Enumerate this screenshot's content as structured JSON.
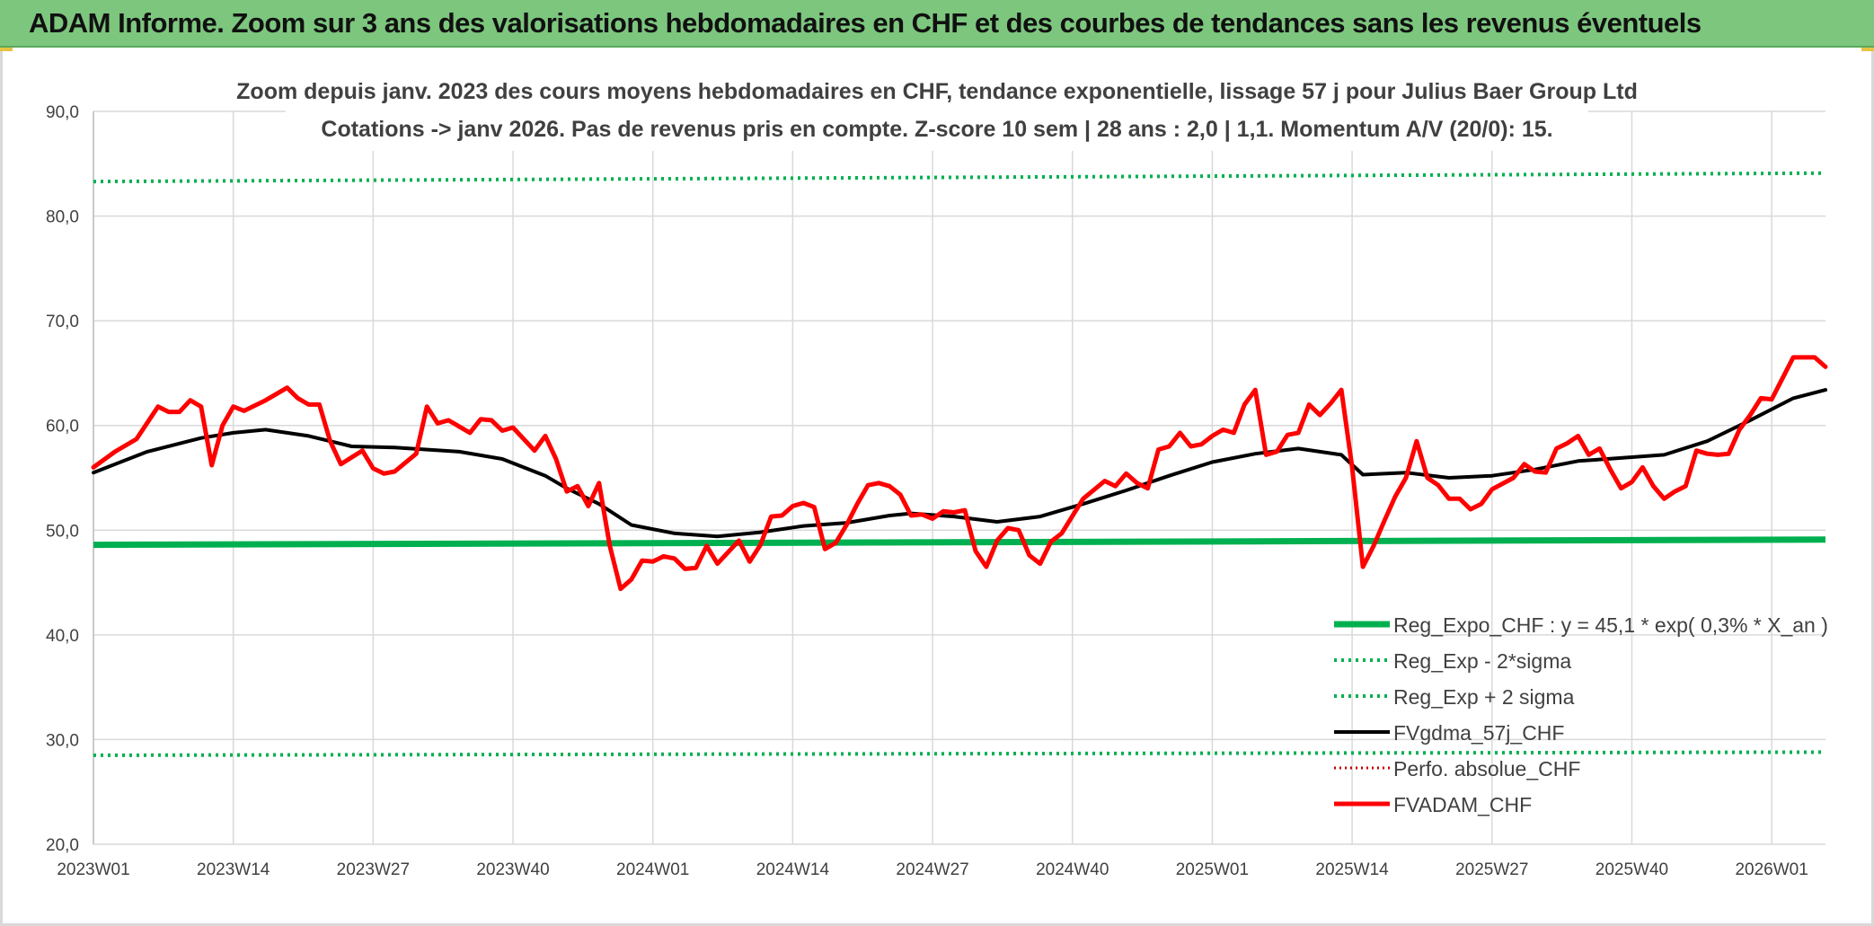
{
  "banner": {
    "title": "ADAM Informe. Zoom sur 3 ans des valorisations hebdomadaires en CHF et des courbes de tendances sans les revenus éventuels"
  },
  "colors": {
    "banner_bg": "#7dc67e",
    "reg_expo": "#00b050",
    "sigma_bands": "#00b050",
    "fvgdma": "#000000",
    "perfo": "#c00000",
    "fvadam": "#ff0000",
    "grid": "#d9d9d9",
    "text": "#404040"
  },
  "chart_data": {
    "type": "line",
    "title_line1": "Zoom depuis janv. 2023 des cours moyens hebdomadaires en CHF, tendance exponentielle, lissage 57 j pour Julius Baer Group Ltd",
    "title_line2": "Cotations -> janv 2026. Pas de revenus pris en compte. Z-score 10 sem | 28 ans : 2,0 | 1,1. Momentum A/V (20/0): 15.",
    "xlabel": "",
    "ylabel": "",
    "ylim": [
      20,
      90
    ],
    "y_ticks": [
      "20,0",
      "30,0",
      "40,0",
      "50,0",
      "60,0",
      "70,0",
      "80,0",
      "90,0"
    ],
    "x_tick_labels": [
      "2023W01",
      "2023W14",
      "2023W27",
      "2023W40",
      "2024W01",
      "2024W14",
      "2024W27",
      "2024W40",
      "2025W01",
      "2025W14",
      "2025W27",
      "2025W40",
      "2026W01"
    ],
    "x_tick_index": [
      0,
      13,
      26,
      39,
      52,
      65,
      78,
      91,
      104,
      117,
      130,
      143,
      156
    ],
    "x_count": 162,
    "grid": true,
    "legend_position": "bottom-right",
    "legend": [
      "Reg_Expo_CHF : y = 45,1 * exp( 0,3% *  X_an )",
      "Reg_Exp - 2*sigma",
      "Reg_Exp + 2 sigma",
      "FVgdma_57j_CHF",
      "Perfo. absolue_CHF",
      "FVADAM_CHF"
    ],
    "series": [
      {
        "name": "Reg_Expo_CHF : y = 45,1 * exp( 0,3% *  X_an )",
        "start": 48.6,
        "end": 49.1
      },
      {
        "name": "Reg_Exp - 2*sigma",
        "start": 28.5,
        "end": 28.8
      },
      {
        "name": "Reg_Exp + 2 sigma",
        "start": 83.3,
        "end": 84.1
      },
      {
        "name": "FVgdma_57j_CHF",
        "points": [
          [
            0,
            55.5
          ],
          [
            5,
            57.5
          ],
          [
            10,
            58.8
          ],
          [
            13,
            59.3
          ],
          [
            16,
            59.6
          ],
          [
            20,
            59.0
          ],
          [
            24,
            58.0
          ],
          [
            28,
            57.9
          ],
          [
            34,
            57.5
          ],
          [
            38,
            56.8
          ],
          [
            42,
            55.2
          ],
          [
            44,
            54.0
          ],
          [
            47,
            52.5
          ],
          [
            50,
            50.5
          ],
          [
            54,
            49.7
          ],
          [
            58,
            49.4
          ],
          [
            62,
            49.8
          ],
          [
            66,
            50.4
          ],
          [
            70,
            50.7
          ],
          [
            74,
            51.4
          ],
          [
            76,
            51.6
          ],
          [
            80,
            51.3
          ],
          [
            84,
            50.8
          ],
          [
            88,
            51.3
          ],
          [
            92,
            52.5
          ],
          [
            96,
            53.8
          ],
          [
            100,
            55.2
          ],
          [
            104,
            56.5
          ],
          [
            108,
            57.3
          ],
          [
            112,
            57.8
          ],
          [
            116,
            57.2
          ],
          [
            118,
            55.3
          ],
          [
            122,
            55.5
          ],
          [
            126,
            55.0
          ],
          [
            130,
            55.2
          ],
          [
            134,
            55.8
          ],
          [
            138,
            56.6
          ],
          [
            142,
            56.9
          ],
          [
            146,
            57.2
          ],
          [
            150,
            58.5
          ],
          [
            154,
            60.5
          ],
          [
            158,
            62.6
          ],
          [
            161,
            63.4
          ]
        ]
      },
      {
        "name": "Perfo. absolue_CHF",
        "points": []
      },
      {
        "name": "FVADAM_CHF",
        "points": [
          [
            0,
            56.0
          ],
          [
            2,
            57.5
          ],
          [
            4,
            58.7
          ],
          [
            6,
            61.8
          ],
          [
            7,
            61.3
          ],
          [
            8,
            61.3
          ],
          [
            9,
            62.4
          ],
          [
            10,
            61.8
          ],
          [
            11,
            56.2
          ],
          [
            12,
            60.0
          ],
          [
            13,
            61.8
          ],
          [
            14,
            61.4
          ],
          [
            16,
            62.4
          ],
          [
            18,
            63.6
          ],
          [
            19,
            62.6
          ],
          [
            20,
            62.0
          ],
          [
            21,
            62.0
          ],
          [
            22,
            58.5
          ],
          [
            23,
            56.3
          ],
          [
            25,
            57.6
          ],
          [
            26,
            55.9
          ],
          [
            27,
            55.4
          ],
          [
            28,
            55.6
          ],
          [
            30,
            57.3
          ],
          [
            31,
            61.8
          ],
          [
            32,
            60.2
          ],
          [
            33,
            60.5
          ],
          [
            35,
            59.3
          ],
          [
            36,
            60.6
          ],
          [
            37,
            60.5
          ],
          [
            38,
            59.5
          ],
          [
            39,
            59.8
          ],
          [
            41,
            57.6
          ],
          [
            42,
            59.0
          ],
          [
            43,
            56.8
          ],
          [
            44,
            53.7
          ],
          [
            45,
            54.2
          ],
          [
            46,
            52.3
          ],
          [
            47,
            54.5
          ],
          [
            48,
            48.5
          ],
          [
            49,
            44.4
          ],
          [
            50,
            45.3
          ],
          [
            51,
            47.1
          ],
          [
            52,
            47.0
          ],
          [
            53,
            47.5
          ],
          [
            54,
            47.3
          ],
          [
            55,
            46.3
          ],
          [
            56,
            46.4
          ],
          [
            57,
            48.5
          ],
          [
            58,
            46.8
          ],
          [
            59,
            47.9
          ],
          [
            60,
            49.0
          ],
          [
            61,
            47.0
          ],
          [
            62,
            48.6
          ],
          [
            63,
            51.3
          ],
          [
            64,
            51.4
          ],
          [
            65,
            52.3
          ],
          [
            66,
            52.6
          ],
          [
            67,
            52.2
          ],
          [
            68,
            48.2
          ],
          [
            69,
            48.8
          ],
          [
            70,
            50.5
          ],
          [
            71,
            52.5
          ],
          [
            72,
            54.3
          ],
          [
            73,
            54.5
          ],
          [
            74,
            54.2
          ],
          [
            75,
            53.4
          ],
          [
            76,
            51.4
          ],
          [
            77,
            51.5
          ],
          [
            78,
            51.1
          ],
          [
            79,
            51.8
          ],
          [
            80,
            51.7
          ],
          [
            81,
            51.9
          ],
          [
            82,
            48.0
          ],
          [
            83,
            46.5
          ],
          [
            84,
            49.0
          ],
          [
            85,
            50.2
          ],
          [
            86,
            50.0
          ],
          [
            87,
            47.6
          ],
          [
            88,
            46.8
          ],
          [
            89,
            48.9
          ],
          [
            90,
            49.7
          ],
          [
            92,
            53.0
          ],
          [
            94,
            54.7
          ],
          [
            95,
            54.2
          ],
          [
            96,
            55.4
          ],
          [
            97,
            54.5
          ],
          [
            98,
            54.0
          ],
          [
            99,
            57.7
          ],
          [
            100,
            58.0
          ],
          [
            101,
            59.3
          ],
          [
            102,
            58.0
          ],
          [
            103,
            58.2
          ],
          [
            104,
            59.0
          ],
          [
            105,
            59.6
          ],
          [
            106,
            59.3
          ],
          [
            107,
            62.0
          ],
          [
            108,
            63.4
          ],
          [
            109,
            57.2
          ],
          [
            110,
            57.5
          ],
          [
            111,
            59.1
          ],
          [
            112,
            59.3
          ],
          [
            113,
            62.0
          ],
          [
            114,
            61.0
          ],
          [
            115,
            62.1
          ],
          [
            116,
            63.4
          ],
          [
            117,
            56.0
          ],
          [
            118,
            46.5
          ],
          [
            119,
            48.5
          ],
          [
            120,
            50.9
          ],
          [
            121,
            53.2
          ],
          [
            122,
            55.0
          ],
          [
            123,
            58.5
          ],
          [
            124,
            55.0
          ],
          [
            125,
            54.3
          ],
          [
            126,
            53.0
          ],
          [
            127,
            53.0
          ],
          [
            128,
            52.0
          ],
          [
            129,
            52.5
          ],
          [
            130,
            53.9
          ],
          [
            132,
            55.0
          ],
          [
            133,
            56.3
          ],
          [
            134,
            55.6
          ],
          [
            135,
            55.5
          ],
          [
            136,
            57.8
          ],
          [
            137,
            58.3
          ],
          [
            138,
            59.0
          ],
          [
            139,
            57.2
          ],
          [
            140,
            57.8
          ],
          [
            141,
            55.8
          ],
          [
            142,
            54.0
          ],
          [
            143,
            54.6
          ],
          [
            144,
            56.0
          ],
          [
            145,
            54.2
          ],
          [
            146,
            53.0
          ],
          [
            147,
            53.7
          ],
          [
            148,
            54.2
          ],
          [
            149,
            57.6
          ],
          [
            150,
            57.3
          ],
          [
            151,
            57.2
          ],
          [
            152,
            57.3
          ],
          [
            153,
            59.6
          ],
          [
            154,
            61.0
          ],
          [
            155,
            62.6
          ],
          [
            156,
            62.5
          ],
          [
            157,
            64.5
          ],
          [
            158,
            66.5
          ],
          [
            159,
            66.5
          ],
          [
            160,
            66.5
          ],
          [
            161,
            65.6
          ]
        ]
      }
    ]
  }
}
